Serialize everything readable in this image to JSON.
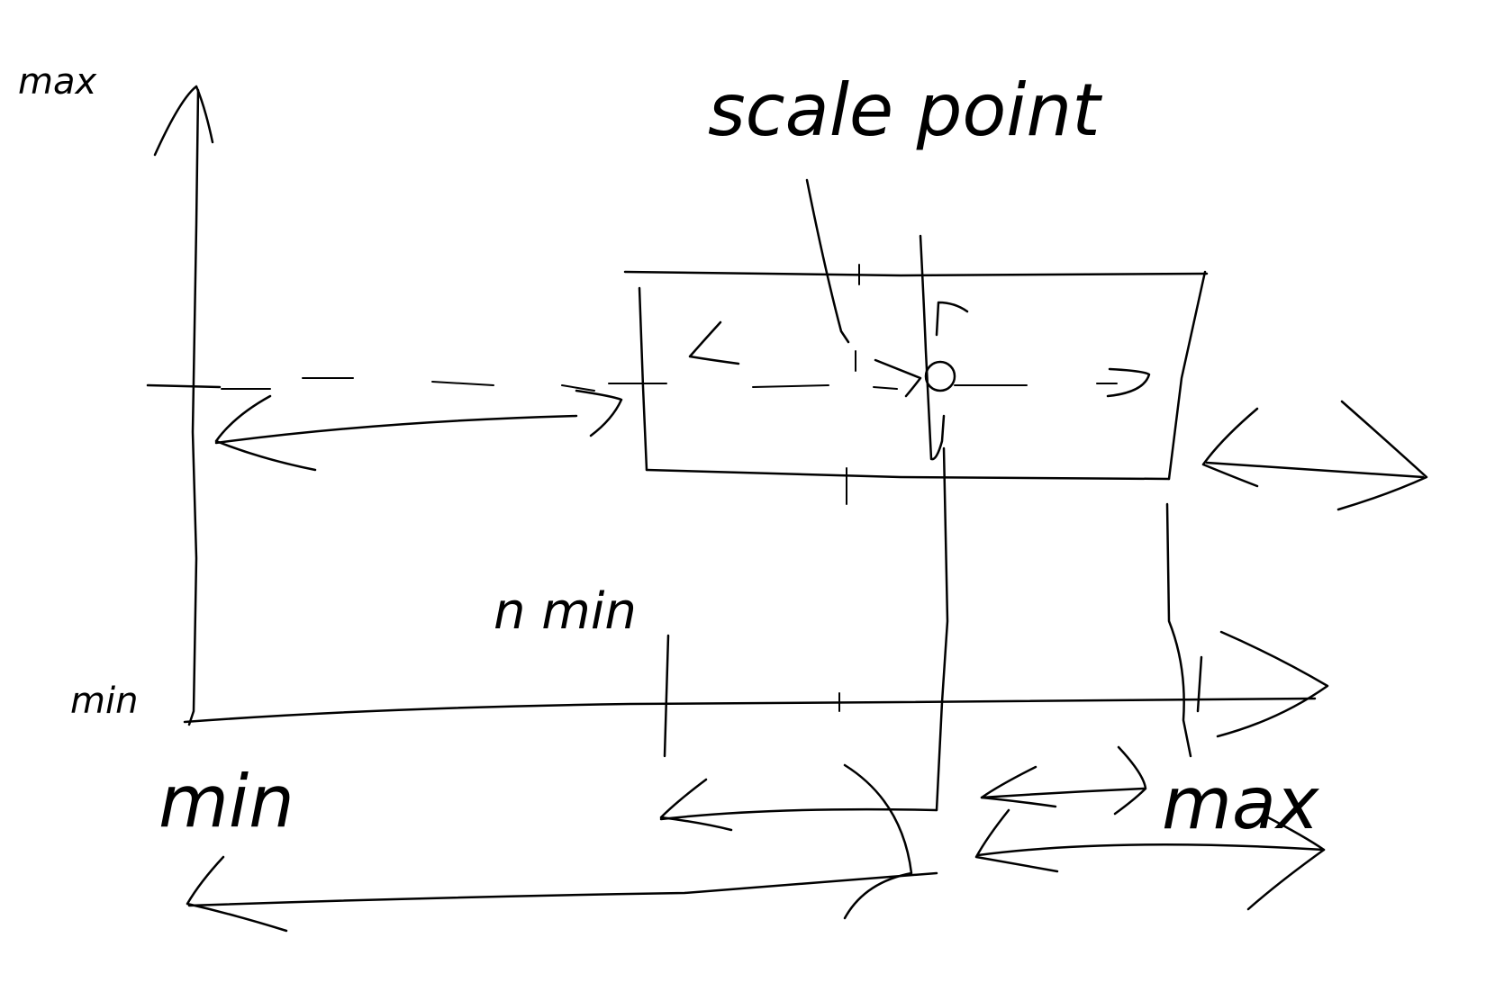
{
  "labels": {
    "y_axis_max": "max",
    "y_axis_min": "min",
    "scale_point": "scale point",
    "h_min": "n min",
    "x_axis_min": "min",
    "x_axis_max": "max"
  },
  "colors": {
    "ink": "#000000",
    "background": "#ffffff"
  }
}
